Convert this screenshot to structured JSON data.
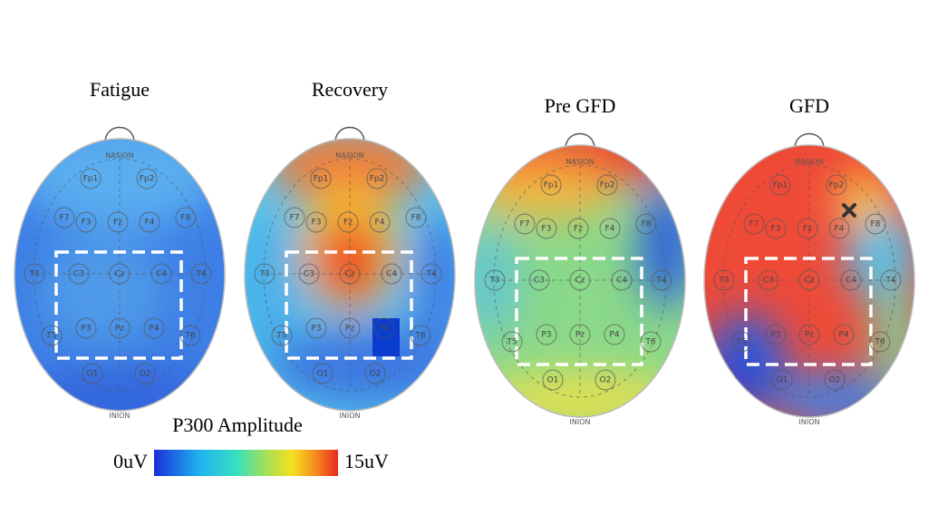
{
  "panels": [
    {
      "title": "Fatigue"
    },
    {
      "title": "Recovery"
    },
    {
      "title": "Pre GFD"
    },
    {
      "title": "GFD"
    }
  ],
  "electrodes": [
    "Fp1",
    "Fp2",
    "F7",
    "F3",
    "Fz",
    "F4",
    "F8",
    "T3",
    "C3",
    "Cz",
    "C4",
    "T4",
    "T5",
    "P3",
    "Pz",
    "P4",
    "T6",
    "O1",
    "O2"
  ],
  "nasion": "NASION",
  "inion": "INION",
  "colorbar": {
    "title": "P300 Amplitude",
    "min_label": "0uV",
    "max_label": "15uV"
  }
}
